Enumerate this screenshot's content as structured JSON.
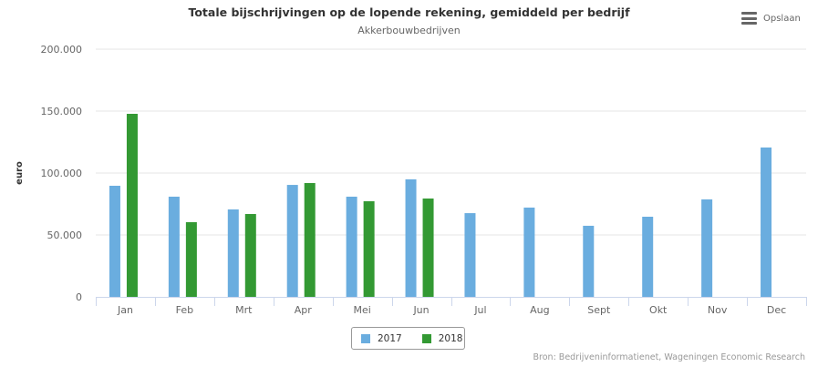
{
  "menu": {
    "label": "Opslaan",
    "icon": "hamburger-menu-icon"
  },
  "credits": "Bron: Bedrijveninformatienet, Wageningen Economic Research",
  "colors": {
    "s2017": "#6aaddf",
    "s2018": "#339933",
    "grid": "#e6e6e6",
    "axis": "#ccd6eb"
  },
  "chart_data": {
    "type": "bar",
    "title": "Totale bijschrijvingen op de lopende rekening, gemiddeld per bedrijf",
    "subtitle": "Akkerbouwbedrijven",
    "xlabel": "",
    "ylabel": "euro",
    "ylim": [
      0,
      200000
    ],
    "yticks": [
      0,
      50000,
      100000,
      150000,
      200000
    ],
    "ytick_labels": [
      "0",
      "50.000",
      "100.000",
      "150.000",
      "200.000"
    ],
    "grid": true,
    "legend_position": "bottom-center",
    "categories": [
      "Jan",
      "Feb",
      "Mrt",
      "Apr",
      "Mei",
      "Jun",
      "Jul",
      "Aug",
      "Sept",
      "Okt",
      "Nov",
      "Dec"
    ],
    "series": [
      {
        "name": "2017",
        "color": "#6aaddf",
        "values": [
          89700,
          80900,
          70600,
          90400,
          80900,
          94900,
          67600,
          72100,
          57400,
          64700,
          78700,
          120600
        ]
      },
      {
        "name": "2018",
        "color": "#339933",
        "values": [
          147800,
          60300,
          66900,
          91900,
          77200,
          79400,
          null,
          null,
          null,
          null,
          null,
          null
        ]
      }
    ]
  }
}
